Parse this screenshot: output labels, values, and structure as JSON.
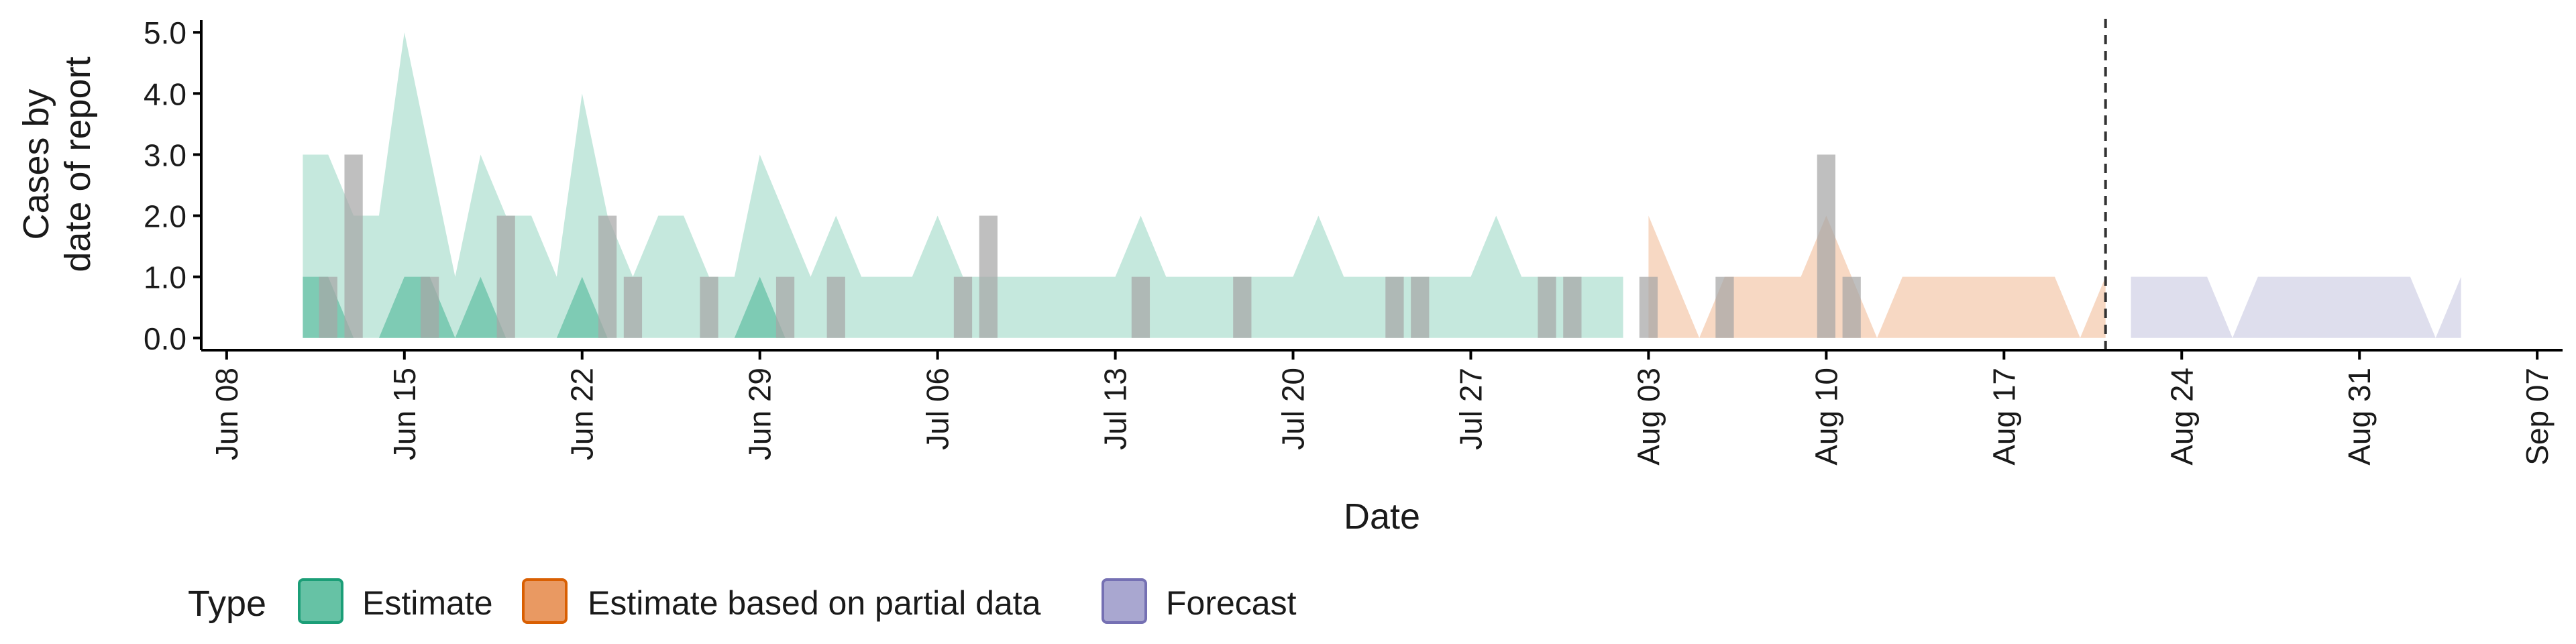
{
  "chart_data": {
    "type": "area",
    "xlabel": "Date",
    "ylabel_lines": [
      "Cases by",
      "date of report"
    ],
    "ylim": [
      -0.2,
      5.2
    ],
    "y_ticks": [
      0,
      1,
      2,
      3,
      4,
      5
    ],
    "y_tick_labels": [
      "0.0",
      "1.0",
      "2.0",
      "3.0",
      "4.0",
      "5.0"
    ],
    "x_range": [
      "2020-06-07",
      "2020-09-08"
    ],
    "x_ticks": [
      "2020-06-08",
      "2020-06-15",
      "2020-06-22",
      "2020-06-29",
      "2020-07-06",
      "2020-07-13",
      "2020-07-20",
      "2020-07-27",
      "2020-08-03",
      "2020-08-10",
      "2020-08-17",
      "2020-08-24",
      "2020-08-31",
      "2020-09-07"
    ],
    "x_tick_labels": [
      "Jun 08",
      "Jun 15",
      "Jun 22",
      "Jun 29",
      "Jul 06",
      "Jul 13",
      "Jul 20",
      "Jul 27",
      "Aug 03",
      "Aug 10",
      "Aug 17",
      "Aug 24",
      "Aug 31",
      "Sep 07"
    ],
    "forecast_date": "2020-08-21",
    "legend": {
      "title": "Type",
      "position": "bottom",
      "items": [
        {
          "label": "Estimate",
          "fill": "#66c2a5",
          "stroke": "#1b9e77"
        },
        {
          "label": "Estimate based on partial data",
          "fill": "#e99962",
          "stroke": "#d95f02"
        },
        {
          "label": "Forecast",
          "fill": "#a9a7d0",
          "stroke": "#7570b3"
        }
      ]
    },
    "series": [
      {
        "name": "Estimate",
        "color": "#66c2a5",
        "dates": [
          "2020-06-11",
          "2020-06-12",
          "2020-06-13",
          "2020-06-14",
          "2020-06-15",
          "2020-06-16",
          "2020-06-17",
          "2020-06-18",
          "2020-06-19",
          "2020-06-20",
          "2020-06-21",
          "2020-06-22",
          "2020-06-23",
          "2020-06-24",
          "2020-06-25",
          "2020-06-26",
          "2020-06-27",
          "2020-06-28",
          "2020-06-29",
          "2020-06-30",
          "2020-07-01",
          "2020-07-02",
          "2020-07-03",
          "2020-07-04",
          "2020-07-05",
          "2020-07-06",
          "2020-07-07",
          "2020-07-08",
          "2020-07-09",
          "2020-07-10",
          "2020-07-11",
          "2020-07-12",
          "2020-07-13",
          "2020-07-14",
          "2020-07-15",
          "2020-07-16",
          "2020-07-17",
          "2020-07-18",
          "2020-07-19",
          "2020-07-20",
          "2020-07-21",
          "2020-07-22",
          "2020-07-23",
          "2020-07-24",
          "2020-07-25",
          "2020-07-26",
          "2020-07-27",
          "2020-07-28",
          "2020-07-29",
          "2020-07-30",
          "2020-07-31",
          "2020-08-01",
          "2020-08-02"
        ],
        "upper": [
          3,
          3,
          2,
          2,
          5,
          3,
          1,
          3,
          2,
          2,
          1,
          4,
          2,
          1,
          2,
          2,
          1,
          1,
          3,
          2,
          1,
          2,
          1,
          1,
          1,
          2,
          1,
          1,
          1,
          1,
          1,
          1,
          1,
          2,
          1,
          1,
          1,
          1,
          1,
          1,
          2,
          1,
          1,
          1,
          1,
          1,
          1,
          2,
          1,
          1,
          1,
          1,
          1
        ],
        "inner_upper": [
          1,
          1,
          0,
          0,
          1,
          1,
          0,
          1,
          0,
          0,
          0,
          1,
          0,
          0,
          0,
          0,
          0,
          0,
          1,
          0,
          0,
          0,
          0,
          0,
          0,
          0,
          0,
          0,
          0,
          0,
          0,
          0,
          0,
          0,
          0,
          0,
          0,
          0,
          0,
          0,
          0,
          0,
          0,
          0,
          0,
          0,
          0,
          0,
          0,
          0,
          0,
          0,
          0
        ]
      },
      {
        "name": "Estimate based on partial data",
        "color": "#e99962",
        "dates": [
          "2020-08-03",
          "2020-08-04",
          "2020-08-05",
          "2020-08-06",
          "2020-08-07",
          "2020-08-08",
          "2020-08-09",
          "2020-08-10",
          "2020-08-11",
          "2020-08-12",
          "2020-08-13",
          "2020-08-14",
          "2020-08-15",
          "2020-08-16",
          "2020-08-17",
          "2020-08-18",
          "2020-08-19",
          "2020-08-20",
          "2020-08-21"
        ],
        "upper": [
          2,
          1,
          0,
          1,
          1,
          1,
          1,
          2,
          1,
          0,
          1,
          1,
          1,
          1,
          1,
          1,
          1,
          0,
          1
        ],
        "inner_upper": [
          0,
          0,
          0,
          0,
          0,
          0,
          0,
          0,
          0,
          0,
          0,
          0,
          0,
          0,
          0,
          0,
          0,
          0,
          0
        ]
      },
      {
        "name": "Forecast",
        "color": "#a9a7d0",
        "dates": [
          "2020-08-22",
          "2020-08-23",
          "2020-08-24",
          "2020-08-25",
          "2020-08-26",
          "2020-08-27",
          "2020-08-28",
          "2020-08-29",
          "2020-08-30",
          "2020-08-31",
          "2020-09-01",
          "2020-09-02",
          "2020-09-03",
          "2020-09-04"
        ],
        "upper": [
          1,
          1,
          1,
          1,
          0,
          1,
          1,
          1,
          1,
          1,
          1,
          1,
          0,
          1
        ],
        "inner_upper": [
          0,
          0,
          0,
          0,
          0,
          0,
          0,
          0,
          0,
          0,
          0,
          0,
          0,
          0
        ]
      }
    ],
    "observed_cases": {
      "color": "#a6a6a6",
      "dates": [
        "2020-06-12",
        "2020-06-13",
        "2020-06-16",
        "2020-06-19",
        "2020-06-23",
        "2020-06-24",
        "2020-06-27",
        "2020-06-30",
        "2020-07-02",
        "2020-07-07",
        "2020-07-08",
        "2020-07-14",
        "2020-07-18",
        "2020-07-24",
        "2020-07-25",
        "2020-07-30",
        "2020-07-31",
        "2020-08-03",
        "2020-08-06",
        "2020-08-10",
        "2020-08-11"
      ],
      "values": [
        1,
        3,
        1,
        2,
        2,
        1,
        1,
        1,
        1,
        1,
        2,
        1,
        1,
        1,
        1,
        1,
        1,
        1,
        1,
        3,
        1
      ]
    }
  }
}
